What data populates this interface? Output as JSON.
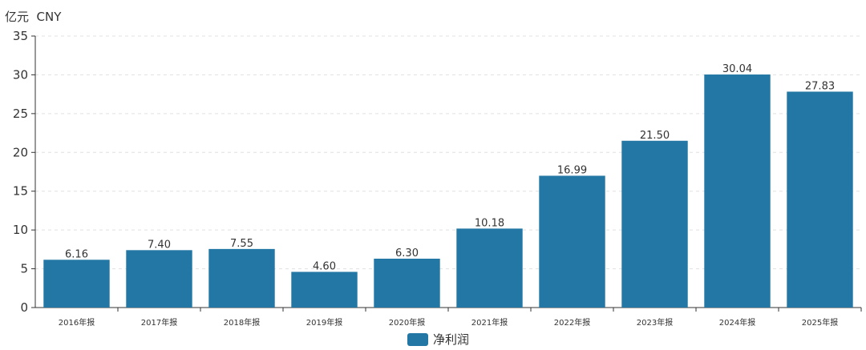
{
  "chart_data": {
    "type": "bar",
    "unit_label": "亿元  CNY",
    "categories": [
      "2016年报",
      "2017年报",
      "2018年报",
      "2019年报",
      "2020年报",
      "2021年报",
      "2022年报",
      "2023年报",
      "2024年报",
      "2025年报"
    ],
    "series": [
      {
        "name": "净利润",
        "values": [
          6.16,
          7.4,
          7.55,
          4.6,
          6.3,
          10.18,
          16.99,
          21.5,
          30.04,
          27.83
        ],
        "labels": [
          "6.16",
          "7.40",
          "7.55",
          "4.60",
          "6.30",
          "10.18",
          "16.99",
          "21.50",
          "30.04",
          "27.83"
        ],
        "color": "#2277a4"
      }
    ],
    "ylim": [
      0,
      35
    ],
    "yticks": [
      0,
      5,
      10,
      15,
      20,
      25,
      30,
      35
    ],
    "grid": true,
    "legend_position": "bottom-center"
  }
}
